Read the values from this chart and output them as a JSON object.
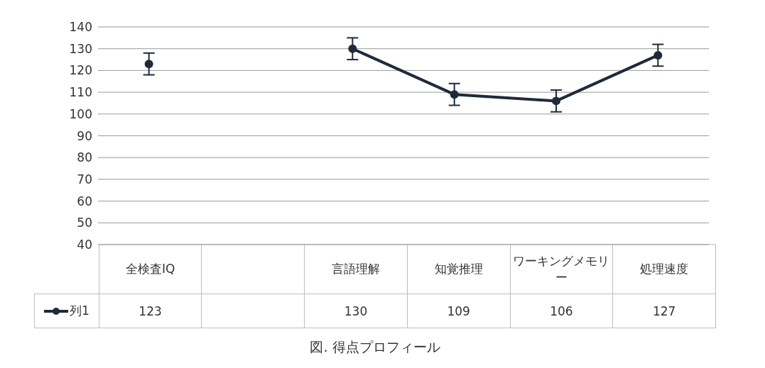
{
  "chart_data": {
    "type": "line",
    "title": "図. 得点プロフィール",
    "categories": [
      "全検査IQ",
      null,
      "言語理解",
      "知覚推理",
      "ワーキングメモリー",
      "処理速度"
    ],
    "series": [
      {
        "name": "列1",
        "color": "#1f2a3a",
        "values": [
          123,
          null,
          130,
          109,
          106,
          127
        ],
        "errors": [
          5,
          null,
          5,
          5,
          5,
          5
        ]
      }
    ],
    "ylim": [
      40,
      140
    ],
    "yticks": [
      40,
      50,
      60,
      70,
      80,
      90,
      100,
      110,
      120,
      130,
      140
    ],
    "grid": "y",
    "legend": "bottom",
    "marker": "circle",
    "line_style": "solid",
    "data_labels": true
  }
}
